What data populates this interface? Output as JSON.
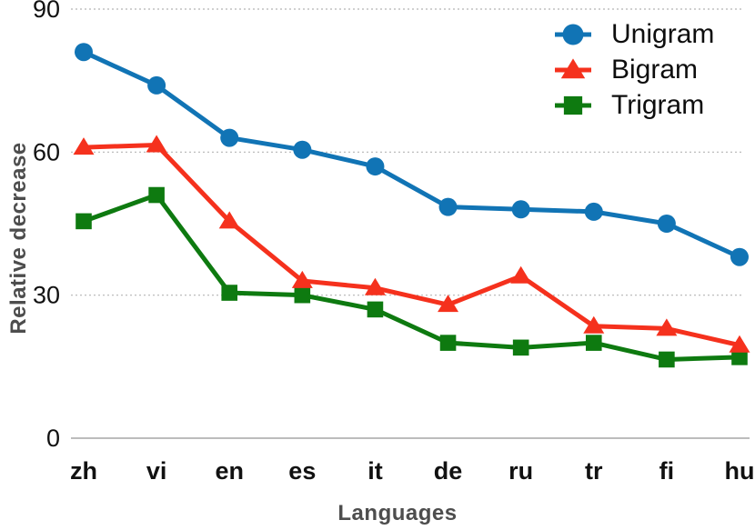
{
  "chart_data": {
    "type": "line",
    "title": "",
    "xlabel": "Languages",
    "ylabel": "Relative decrease",
    "categories": [
      "zh",
      "vi",
      "en",
      "es",
      "it",
      "de",
      "ru",
      "tr",
      "fi",
      "hu"
    ],
    "series": [
      {
        "name": "Unigram",
        "marker": "circle",
        "color": "#1174b5",
        "values": [
          81,
          74,
          63,
          60.5,
          57,
          48.5,
          48,
          47.5,
          45,
          38
        ]
      },
      {
        "name": "Bigram",
        "marker": "triangle",
        "color": "#f5311d",
        "values": [
          61,
          61.5,
          45.5,
          33,
          31.5,
          28,
          34,
          23.5,
          23,
          19.5
        ]
      },
      {
        "name": "Trigram",
        "marker": "square",
        "color": "#0e7a10",
        "values": [
          45.5,
          51,
          30.5,
          30,
          27,
          20,
          19,
          20,
          16.5,
          17
        ]
      }
    ],
    "ylim": [
      0,
      90
    ],
    "yticks": [
      0,
      30,
      60,
      90
    ],
    "grid": "horizontal-dotted",
    "legend_position": "top-right"
  },
  "style": {
    "tick_label_color": "#111111",
    "axis_title_color": "#4d4d4d",
    "grid_color": "#b5b5b5",
    "axis_line_color": "#a6a6a6"
  }
}
